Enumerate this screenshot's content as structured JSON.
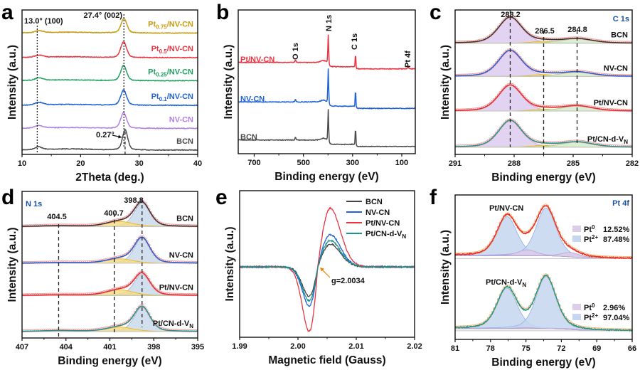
{
  "chart_data": [
    {
      "id": "a",
      "letter": "a",
      "type": "line",
      "xlabel": "2Theta (deg.)",
      "ylabel": "Intensity (a.u.)",
      "xlim": [
        10,
        40
      ],
      "ylim": [
        0,
        100
      ],
      "xticks": [
        "10",
        "20",
        "30",
        "40"
      ],
      "reference_lines": [
        12.6,
        27.4,
        27.6
      ],
      "annotations": [
        "13.0° (100)",
        "27.4° (002)",
        "0.27°"
      ],
      "series": [
        {
          "name": "BCN",
          "label": [
            {
              "t": "BCN"
            }
          ],
          "color": "#4a4a4a",
          "offset": 3,
          "peaks": [
            [
              12.8,
              2,
              0.6
            ],
            [
              27.6,
              14,
              0.45
            ],
            [
              18,
              0.8,
              4
            ]
          ]
        },
        {
          "name": "NV-CN",
          "label": [
            {
              "t": "NV-CN"
            }
          ],
          "color": "#b07fe0",
          "offset": 18,
          "peaks": [
            [
              12.9,
              1.8,
              0.7
            ],
            [
              27.35,
              11,
              0.5
            ],
            [
              18,
              0.6,
              4
            ]
          ]
        },
        {
          "name": "Pt0.1/NV-CN",
          "label": [
            {
              "t": "Pt"
            },
            {
              "t": "0.1",
              "sub": true
            },
            {
              "t": "/NV-CN"
            }
          ],
          "color": "#1f62d6",
          "offset": 34,
          "peaks": [
            [
              12.9,
              1.8,
              0.7
            ],
            [
              27.35,
              10.5,
              0.5
            ],
            [
              18,
              0.6,
              4
            ]
          ]
        },
        {
          "name": "Pt0.25/NV-CN",
          "label": [
            {
              "t": "Pt"
            },
            {
              "t": "0.25",
              "sub": true
            },
            {
              "t": "/NV-CN"
            }
          ],
          "color": "#22a060",
          "offset": 51,
          "peaks": [
            [
              12.9,
              1.8,
              0.7
            ],
            [
              27.35,
              10.5,
              0.5
            ],
            [
              18,
              0.6,
              4
            ]
          ]
        },
        {
          "name": "Pt0.5/NV-CN",
          "label": [
            {
              "t": "Pt"
            },
            {
              "t": "0.5",
              "sub": true
            },
            {
              "t": "/NV-CN"
            }
          ],
          "color": "#ea3340",
          "offset": 67,
          "peaks": [
            [
              12.9,
              1.5,
              0.7
            ],
            [
              27.35,
              11,
              0.5
            ],
            [
              18,
              0.6,
              4
            ]
          ]
        },
        {
          "name": "Pt0.75/NV-CN",
          "label": [
            {
              "t": "Pt"
            },
            {
              "t": "0.75",
              "sub": true
            },
            {
              "t": "/NV-CN"
            }
          ],
          "color": "#c99a10",
          "offset": 84,
          "peaks": [
            [
              12.9,
              1.5,
              0.7
            ],
            [
              27.4,
              10,
              0.5
            ],
            [
              18,
              0.6,
              4
            ]
          ]
        }
      ]
    },
    {
      "id": "b",
      "letter": "b",
      "type": "line",
      "xlabel": "Binding energy (eV)",
      "ylabel": "Intensity (a.u.)",
      "xlim": [
        765,
        45
      ],
      "ylim": [
        0,
        100
      ],
      "xticks": [
        "700",
        "500",
        "300",
        "100"
      ],
      "annotations": [
        "O 1s",
        "N 1s",
        "C 1s",
        "Pt 4f"
      ],
      "series": [
        {
          "name": "BCN",
          "label": [
            {
              "t": "BCN"
            }
          ],
          "color": "#4a4a4a",
          "offset": 5,
          "steps": [
            [
              400,
              3,
              3
            ],
            [
              290,
              1.5,
              2
            ]
          ],
          "peaks": [
            [
              399,
              23,
              1.6
            ],
            [
              288,
              14,
              1.3
            ],
            [
              532,
              2,
              1.8
            ],
            [
              420,
              1.2,
              10
            ]
          ]
        },
        {
          "name": "NV-CN",
          "label": [
            {
              "t": "NV-CN"
            }
          ],
          "color": "#1f62d6",
          "offset": 31.5,
          "steps": [
            [
              400,
              3,
              3
            ],
            [
              290,
              1.5,
              2
            ]
          ],
          "peaks": [
            [
              399,
              25,
              1.6
            ],
            [
              288,
              14,
              1.3
            ],
            [
              532,
              2,
              1.8
            ],
            [
              420,
              1.2,
              10
            ]
          ]
        },
        {
          "name": "Pt/NV-CN",
          "label": [
            {
              "t": "Pt/NV-CN"
            }
          ],
          "color": "#ea3340",
          "offset": 59,
          "steps": [
            [
              400,
              3,
              3
            ],
            [
              290,
              1.5,
              2
            ]
          ],
          "peaks": [
            [
              399,
              21,
              1.6
            ],
            [
              288,
              11,
              1.3
            ],
            [
              532,
              2,
              1.8
            ],
            [
              420,
              1.2,
              10
            ],
            [
              74,
              1.2,
              2
            ]
          ]
        }
      ]
    },
    {
      "id": "c",
      "letter": "c",
      "type": "line",
      "xlabel": "Binding energy (eV)",
      "ylabel": "Intensity (a.u.)",
      "xlim": [
        291,
        282
      ],
      "ylim": [
        0,
        100
      ],
      "xticks": [
        "291",
        "288",
        "285",
        "282"
      ],
      "reference_lines": [
        288.2,
        286.5,
        284.8
      ],
      "annotations": [
        "288.2",
        "286.5",
        "284.8",
        "C 1s"
      ],
      "component_colors": [
        "#dccbee",
        "#f5dc8c",
        "#d3ebcb"
      ],
      "component_lines": [
        "#c6a9e6",
        "#f0b400",
        "#9fd08e"
      ],
      "raw_color": "#f19a9a",
      "series": [
        {
          "name": "BCN",
          "label": [
            {
              "t": "BCN"
            }
          ],
          "color": "#333333",
          "offset": 77,
          "peaks": [
            [
              288.2,
              18,
              0.6
            ],
            [
              286.5,
              1.3,
              0.6
            ],
            [
              284.8,
              3,
              0.8
            ]
          ]
        },
        {
          "name": "NV-CN",
          "label": [
            {
              "t": "NV-CN"
            }
          ],
          "color": "#1f5fd1",
          "offset": 54,
          "peaks": [
            [
              288.2,
              18,
              0.6
            ],
            [
              286.5,
              1.3,
              0.6
            ],
            [
              284.8,
              3,
              0.8
            ]
          ]
        },
        {
          "name": "Pt/NV-CN",
          "label": [
            {
              "t": "Pt/NV-CN"
            }
          ],
          "color": "#e02a34",
          "offset": 30,
          "peaks": [
            [
              288.2,
              18,
              0.6
            ],
            [
              286.5,
              1.3,
              0.6
            ],
            [
              284.8,
              3.5,
              0.8
            ]
          ]
        },
        {
          "name": "Pt/CN-d-VN",
          "label": [
            {
              "t": "Pt/CN-d-V"
            },
            {
              "t": "N",
              "sub": true
            }
          ],
          "color": "#1a9490",
          "offset": 5,
          "peaks": [
            [
              288.2,
              18.5,
              0.6
            ],
            [
              286.5,
              1.3,
              0.6
            ],
            [
              284.8,
              3.5,
              0.8
            ]
          ]
        }
      ]
    },
    {
      "id": "d",
      "letter": "d",
      "type": "line",
      "xlabel": "Binding energy (eV)",
      "ylabel": "Intensity (a.u.)",
      "xlim": [
        407,
        395
      ],
      "ylim": [
        0,
        100
      ],
      "xticks": [
        "407",
        "404",
        "401",
        "398",
        "395"
      ],
      "reference_lines": [
        404.5,
        400.7,
        398.8
      ],
      "annotations": [
        "N 1s",
        "404.5",
        "400.7",
        "398.8"
      ],
      "component_colors": [
        "#c9d9ec",
        "#f5dc8c",
        "#d3ebcb"
      ],
      "component_lines": [
        "#9db9dc",
        "#f0b400",
        "#9fd08e"
      ],
      "raw_color": "#f19a9a",
      "series": [
        {
          "name": "BCN",
          "label": [
            {
              "t": "BCN"
            }
          ],
          "color": "#333333",
          "offset": 76,
          "peaks": [
            [
              398.8,
              16,
              0.55
            ],
            [
              400.3,
              3.5,
              0.9
            ],
            [
              404.5,
              0.6,
              1.2
            ]
          ]
        },
        {
          "name": "NV-CN",
          "label": [
            {
              "t": "NV-CN"
            }
          ],
          "color": "#1f5fd1",
          "offset": 51,
          "peaks": [
            [
              398.8,
              17,
              0.55
            ],
            [
              400.3,
              3,
              0.9
            ],
            [
              404.5,
              0.4,
              1.2
            ]
          ]
        },
        {
          "name": "Pt/NV-CN",
          "label": [
            {
              "t": "Pt/NV-CN"
            }
          ],
          "color": "#e02a34",
          "offset": 29,
          "peaks": [
            [
              398.8,
              14.5,
              0.55
            ],
            [
              400.3,
              3.8,
              0.9
            ],
            [
              404.5,
              0.4,
              1.2
            ]
          ]
        },
        {
          "name": "Pt/CN-d-VN",
          "label": [
            {
              "t": "Pt/CN-d-V"
            },
            {
              "t": "N",
              "sub": true
            }
          ],
          "color": "#1a9490",
          "offset": 4.4,
          "peaks": [
            [
              398.8,
              16.5,
              0.55
            ],
            [
              400.3,
              3,
              0.9
            ],
            [
              404.5,
              0.6,
              1.2
            ]
          ]
        }
      ]
    },
    {
      "id": "e",
      "letter": "e",
      "type": "line",
      "xlabel": "Magnetic field (Gauss)",
      "ylabel": "Intensity (a.u.)",
      "xlim": [
        1.99,
        2.02
      ],
      "ylim": [
        -1,
        1
      ],
      "xticks": [
        "1.99",
        "2.00",
        "2.01",
        "2.02"
      ],
      "annotations": [
        "g=2.0034"
      ],
      "g_center": 2.0034,
      "baseline": -0.04,
      "legend": "top-right",
      "series": [
        {
          "name": "BCN",
          "label": [
            {
              "t": "BCN"
            }
          ],
          "color": "#444444",
          "min": -0.4,
          "max": 0.31
        },
        {
          "name": "NV-CN",
          "label": [
            {
              "t": "NV-CN"
            }
          ],
          "color": "#1f62d6",
          "min": -0.53,
          "max": 0.44
        },
        {
          "name": "Pt/NV-CN",
          "label": [
            {
              "t": "Pt/NV-CN"
            }
          ],
          "color": "#ea3340",
          "min": -0.88,
          "max": 0.8
        },
        {
          "name": "Pt/CN-d-VN",
          "label": [
            {
              "t": "Pt/CN-d-V"
            },
            {
              "t": "N",
              "sub": true
            }
          ],
          "color": "#1a9490",
          "min": -0.46,
          "max": 0.36
        }
      ]
    },
    {
      "id": "f",
      "letter": "f",
      "type": "line",
      "xlabel": "Binding energy (eV)",
      "ylabel": "Intensity (a.u.)",
      "xlim": [
        81,
        66
      ],
      "ylim": [
        0,
        100
      ],
      "xticks": [
        "81",
        "78",
        "75",
        "72",
        "69",
        "66"
      ],
      "annotations": [
        "Pt 4f"
      ],
      "component_colors": [
        "#c6d6f0",
        "#c6d6f0",
        "#dccde8",
        "#dccde8"
      ],
      "component_lines": [
        "#8fb0e0",
        "#8fb0e0",
        "#b9a3d6",
        "#b9a3d6"
      ],
      "raw_color": "#f5b36a",
      "series": [
        {
          "name": "Pt/NV-CN",
          "label": [
            {
              "t": "Pt/NV-CN"
            }
          ],
          "color": "#e8282f",
          "offset": 56,
          "steps": [
            [
              71,
              2,
              0.8
            ]
          ],
          "peaks": [
            [
              76.6,
              27,
              0.85
            ],
            [
              73.3,
              33,
              0.85
            ],
            [
              74.9,
              4,
              0.8
            ],
            [
              71.2,
              3,
              0.8
            ]
          ],
          "legend": [
            {
              "label": [
                {
                  "t": "Pt"
                },
                {
                  "t": "0",
                  "sup": true
                }
              ],
              "value": "12.52%"
            },
            {
              "label": [
                {
                  "t": "Pt"
                },
                {
                  "t": "2+",
                  "sup": true
                }
              ],
              "value": "87.48%"
            }
          ]
        },
        {
          "name": "Pt/CN-d-VN",
          "label": [
            {
              "t": "Pt/CN-d-V"
            },
            {
              "t": "N",
              "sub": true
            }
          ],
          "color": "#1a9490",
          "offset": 6,
          "steps": [
            [
              71,
              1.5,
              0.8
            ]
          ],
          "peaks": [
            [
              76.6,
              28,
              0.85
            ],
            [
              73.3,
              36,
              0.85
            ],
            [
              75,
              0.7,
              0.8
            ],
            [
              71.3,
              0.5,
              0.8
            ]
          ],
          "legend": [
            {
              "label": [
                {
                  "t": "Pt"
                },
                {
                  "t": "0",
                  "sup": true
                }
              ],
              "value": "2.96%"
            },
            {
              "label": [
                {
                  "t": "Pt"
                },
                {
                  "t": "2+",
                  "sup": true
                }
              ],
              "value": "97.04%"
            }
          ]
        }
      ]
    }
  ]
}
